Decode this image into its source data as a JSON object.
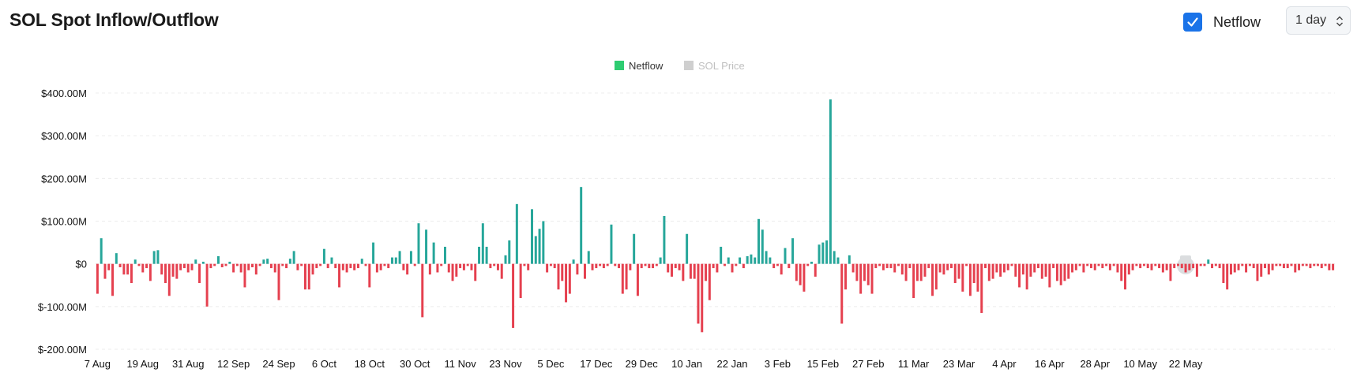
{
  "header": {
    "title": "SOL Spot Inflow/Outflow",
    "toggle_label": "Netflow",
    "toggle_checked": true,
    "interval": "1 day"
  },
  "colors": {
    "positive": "#26a69a",
    "negative": "#e5404f",
    "legend_netflow": "#2ecc71",
    "legend_price": "#cfcfcf",
    "accent": "#1a73e8"
  },
  "chart_data": {
    "type": "bar",
    "title": "SOL Spot Inflow/Outflow",
    "xlabel": "",
    "ylabel": "",
    "ylim": [
      -200,
      400
    ],
    "y_unit": "M USD",
    "y_ticks": [
      {
        "value": 400,
        "label": "$400.00M"
      },
      {
        "value": 300,
        "label": "$300.00M"
      },
      {
        "value": 200,
        "label": "$200.00M"
      },
      {
        "value": 100,
        "label": "$100.00M"
      },
      {
        "value": 0,
        "label": "$0"
      },
      {
        "value": -100,
        "label": "$-100.00M"
      },
      {
        "value": -200,
        "label": "$-200.00M"
      }
    ],
    "x_ticks": [
      {
        "index": 0,
        "label": "7 Aug"
      },
      {
        "index": 12,
        "label": "19 Aug"
      },
      {
        "index": 24,
        "label": "31 Aug"
      },
      {
        "index": 36,
        "label": "12 Sep"
      },
      {
        "index": 48,
        "label": "24 Sep"
      },
      {
        "index": 60,
        "label": "6 Oct"
      },
      {
        "index": 72,
        "label": "18 Oct"
      },
      {
        "index": 84,
        "label": "30 Oct"
      },
      {
        "index": 96,
        "label": "11 Nov"
      },
      {
        "index": 108,
        "label": "23 Nov"
      },
      {
        "index": 120,
        "label": "5 Dec"
      },
      {
        "index": 132,
        "label": "17 Dec"
      },
      {
        "index": 144,
        "label": "29 Dec"
      },
      {
        "index": 156,
        "label": "10 Jan"
      },
      {
        "index": 168,
        "label": "22 Jan"
      },
      {
        "index": 180,
        "label": "3 Feb"
      },
      {
        "index": 192,
        "label": "15 Feb"
      },
      {
        "index": 204,
        "label": "27 Feb"
      },
      {
        "index": 216,
        "label": "11 Mar"
      },
      {
        "index": 228,
        "label": "23 Mar"
      },
      {
        "index": 240,
        "label": "4 Apr"
      },
      {
        "index": 252,
        "label": "16 Apr"
      },
      {
        "index": 264,
        "label": "28 Apr"
      },
      {
        "index": 276,
        "label": "10 May"
      },
      {
        "index": 288,
        "label": "22 May"
      }
    ],
    "legend": [
      {
        "name": "Netflow",
        "active": true
      },
      {
        "name": "SOL Price",
        "active": false
      }
    ],
    "legend_position": "top-center",
    "grid": true,
    "series": [
      {
        "name": "Netflow",
        "values": [
          -70,
          60,
          -35,
          -15,
          -75,
          25,
          -8,
          -25,
          -25,
          -45,
          10,
          -5,
          -20,
          -10,
          -40,
          30,
          32,
          -25,
          -45,
          -75,
          -30,
          -35,
          -15,
          -10,
          -20,
          -15,
          10,
          -45,
          5,
          -100,
          -10,
          -5,
          18,
          -8,
          -5,
          5,
          -20,
          -5,
          -20,
          -55,
          -15,
          -8,
          -25,
          -5,
          10,
          12,
          -10,
          -20,
          -85,
          -5,
          -10,
          12,
          30,
          -15,
          -5,
          -60,
          -60,
          -25,
          -10,
          -5,
          35,
          -10,
          15,
          -10,
          -55,
          -15,
          -20,
          -10,
          -15,
          -10,
          12,
          -5,
          -55,
          50,
          -20,
          -15,
          -5,
          -10,
          15,
          15,
          30,
          -15,
          -25,
          30,
          -5,
          95,
          -125,
          80,
          -25,
          50,
          -20,
          -5,
          40,
          -20,
          -40,
          -30,
          -10,
          -15,
          -5,
          -15,
          -40,
          40,
          95,
          40,
          -10,
          -5,
          -15,
          -35,
          20,
          55,
          -150,
          140,
          -80,
          -5,
          -15,
          128,
          65,
          82,
          100,
          -20,
          -5,
          -10,
          -60,
          -40,
          -90,
          -70,
          10,
          -25,
          180,
          -35,
          30,
          -15,
          -10,
          -5,
          -10,
          -5,
          92,
          -5,
          -10,
          -70,
          -60,
          -15,
          70,
          -75,
          -10,
          -5,
          -10,
          -10,
          -5,
          15,
          112,
          -20,
          -30,
          -10,
          -15,
          -40,
          70,
          -35,
          -35,
          -140,
          -160,
          -40,
          -85,
          -10,
          -20,
          40,
          -5,
          15,
          -20,
          -5,
          15,
          -10,
          18,
          22,
          15,
          105,
          80,
          30,
          15,
          -10,
          -5,
          -25,
          37,
          -10,
          60,
          -40,
          -50,
          -65,
          -5,
          5,
          -30,
          45,
          50,
          55,
          385,
          30,
          15,
          -140,
          -60,
          20,
          -20,
          -40,
          -70,
          -40,
          -50,
          -70,
          -10,
          -5,
          -15,
          -10,
          -10,
          -20,
          -5,
          -25,
          -40,
          -10,
          -80,
          -40,
          -40,
          -30,
          -10,
          -75,
          -60,
          -20,
          -25,
          -15,
          -10,
          -45,
          -35,
          -65,
          -5,
          -75,
          -45,
          -65,
          -115,
          -10,
          -40,
          -35,
          -20,
          -30,
          -20,
          -15,
          -5,
          -30,
          -55,
          -25,
          -60,
          -30,
          -20,
          -10,
          -35,
          -30,
          -55,
          -10,
          -40,
          -50,
          -40,
          -35,
          -20,
          -15,
          -5,
          -20,
          -5,
          -10,
          -15,
          -5,
          -10,
          -5,
          -15,
          -5,
          -20,
          -40,
          -60,
          -25,
          -15,
          -5,
          -10,
          -5,
          -10,
          -15,
          -5,
          -10,
          -20,
          -15,
          -40,
          -10,
          -5,
          -10,
          -20,
          -15,
          -10,
          -30,
          -5,
          -5,
          10,
          -10,
          -5,
          -10,
          -45,
          -60,
          -25,
          -20,
          -15,
          -5,
          -20,
          -5,
          -10,
          -40,
          -30,
          -10,
          -25,
          -15,
          -5,
          -5,
          -10,
          -10,
          -5,
          -20,
          -15,
          -5,
          -5,
          -10,
          -5,
          -5,
          -10,
          -5,
          -15,
          -15
        ]
      }
    ]
  }
}
